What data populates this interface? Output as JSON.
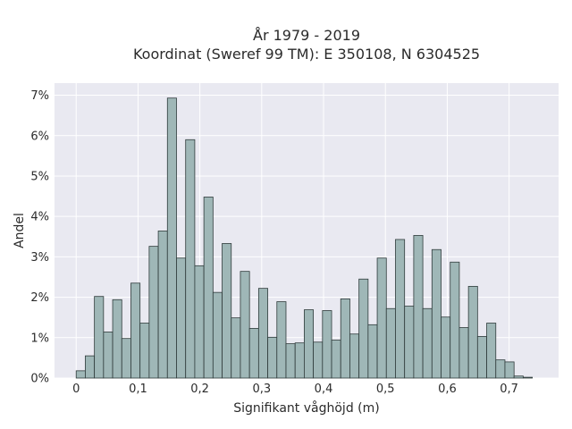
{
  "chart_data": {
    "type": "bar",
    "title_line1": "År 1979 - 2019",
    "title_line2": "Koordinat (Sweref 99 TM): E 350108, N 6304525",
    "xlabel": "Signifikant våghöjd (m)",
    "ylabel": "Andel",
    "xlim": [
      -0.035,
      0.78
    ],
    "ylim": [
      0,
      7.3
    ],
    "grid": true,
    "x_ticks": [
      {
        "value": 0,
        "label": "0"
      },
      {
        "value": 0.1,
        "label": "0,1"
      },
      {
        "value": 0.2,
        "label": "0,2"
      },
      {
        "value": 0.3,
        "label": "0,3"
      },
      {
        "value": 0.4,
        "label": "0,4"
      },
      {
        "value": 0.5,
        "label": "0,5"
      },
      {
        "value": 0.6,
        "label": "0,6"
      },
      {
        "value": 0.7,
        "label": "0,7"
      }
    ],
    "y_ticks": [
      {
        "value": 0,
        "label": "0%"
      },
      {
        "value": 1,
        "label": "1%"
      },
      {
        "value": 2,
        "label": "2%"
      },
      {
        "value": 3,
        "label": "3%"
      },
      {
        "value": 4,
        "label": "4%"
      },
      {
        "value": 5,
        "label": "5%"
      },
      {
        "value": 6,
        "label": "6%"
      },
      {
        "value": 7,
        "label": "7%"
      }
    ],
    "bin_width": 0.01475,
    "bin_start": 0,
    "values": [
      0.18,
      0.55,
      2.02,
      1.14,
      1.94,
      0.98,
      2.35,
      1.36,
      3.26,
      3.64,
      6.93,
      2.97,
      5.9,
      2.78,
      4.48,
      2.12,
      3.33,
      1.49,
      2.64,
      1.23,
      2.22,
      1.01,
      1.89,
      0.85,
      0.87,
      1.69,
      0.89,
      1.67,
      0.94,
      1.96,
      1.09,
      2.45,
      1.32,
      2.97,
      1.72,
      3.43,
      1.78,
      3.53,
      1.72,
      3.18,
      1.51,
      2.87,
      1.25,
      2.27,
      1.03,
      1.36,
      0.45,
      0.4,
      0.05,
      0.02
    ]
  }
}
